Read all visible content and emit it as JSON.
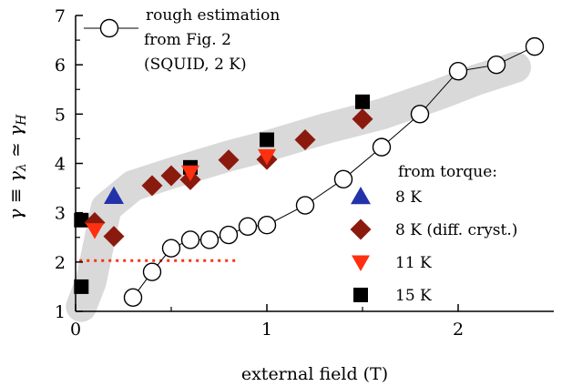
{
  "chart_data": {
    "type": "scatter",
    "xlabel": "external field (T)",
    "ylabel": {
      "parts": [
        "γ ≡ γ",
        "λ",
        " ≃ γ",
        "H"
      ]
    },
    "xlim": [
      0,
      2.5
    ],
    "ylim": [
      1,
      7
    ],
    "xticks": [
      "0",
      "1",
      "2"
    ],
    "xtick_values": [
      0,
      1,
      2
    ],
    "yticks": [
      "1",
      "2",
      "3",
      "4",
      "5",
      "6",
      "7"
    ],
    "ytick_values": [
      1,
      2,
      3,
      4,
      5,
      6,
      7
    ],
    "grid": false,
    "legend_position": "top-left",
    "legend_torque_heading": "from torque:",
    "series": [
      {
        "name": "rough estimation from Fig. 2 (SQUID, 2 K)",
        "legend_lines": [
          "rough estimation",
          "from Fig. 2",
          "(SQUID, 2 K)"
        ],
        "marker": "open-circle",
        "color": "#000000",
        "connected": true,
        "x": [
          0.3,
          0.4,
          0.5,
          0.6,
          0.7,
          0.8,
          0.9,
          1.0,
          1.2,
          1.4,
          1.6,
          1.8,
          2.0,
          2.2,
          2.4
        ],
        "y": [
          1.28,
          1.8,
          2.28,
          2.45,
          2.45,
          2.55,
          2.72,
          2.75,
          3.15,
          3.68,
          4.33,
          5.0,
          5.87,
          6.0,
          6.37
        ]
      },
      {
        "name": "8 K",
        "marker": "triangle-up",
        "color": "#2233aa",
        "x": [
          0.2
        ],
        "y": [
          3.33
        ]
      },
      {
        "name": "8 K (diff. cryst.)",
        "marker": "diamond",
        "color": "#8b1a0e",
        "x": [
          0.1,
          0.2,
          0.4,
          0.5,
          0.6,
          0.8,
          1.0,
          1.2,
          1.5
        ],
        "y": [
          2.8,
          2.52,
          3.55,
          3.75,
          3.67,
          4.07,
          4.08,
          4.48,
          4.9
        ]
      },
      {
        "name": "11 K",
        "marker": "triangle-down",
        "color": "#ff3010",
        "x": [
          0.1,
          0.6,
          1.0
        ],
        "y": [
          2.65,
          3.82,
          4.15
        ]
      },
      {
        "name": "15 K",
        "marker": "square",
        "color": "#000000",
        "x": [
          0.03,
          0.03,
          0.6,
          1.0,
          1.5
        ],
        "y": [
          2.85,
          1.5,
          3.92,
          4.48,
          5.25
        ]
      }
    ],
    "band": {
      "color": "#d9d9d9",
      "x": [
        0.03,
        0.08,
        0.16,
        0.3,
        0.5,
        0.8,
        1.0,
        1.3,
        1.6,
        1.9,
        2.1,
        2.3
      ],
      "y": [
        1.1,
        1.6,
        3.1,
        3.55,
        3.8,
        4.15,
        4.35,
        4.7,
        5.0,
        5.4,
        5.7,
        5.95
      ]
    },
    "reference_line": {
      "color": "#ff3010",
      "y": 2.03,
      "x": [
        0.02,
        0.85
      ]
    }
  }
}
